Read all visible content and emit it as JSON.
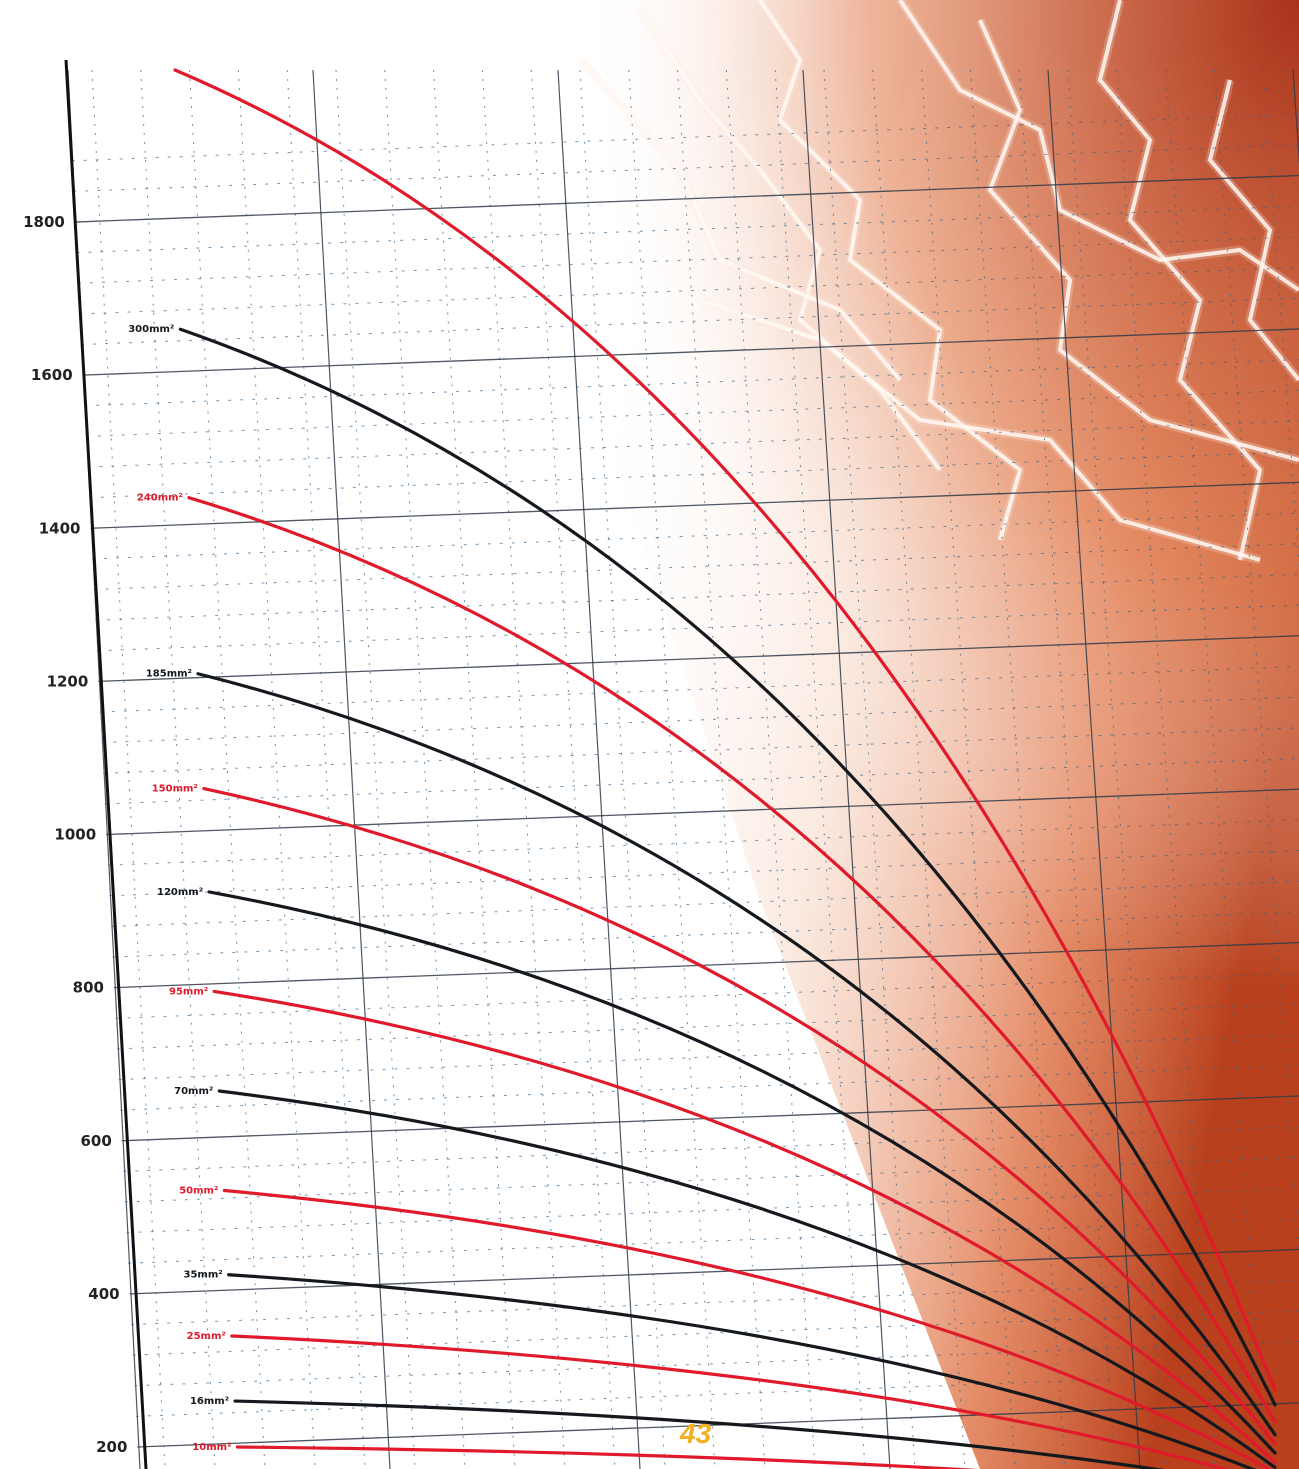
{
  "page": {
    "number": "43"
  },
  "colors": {
    "red_series": "#e0192b",
    "black_series": "#15181d",
    "grid_major": "#2f3a48",
    "grid_minor": "#2f5f86",
    "background_glow": "#c9502a"
  },
  "chart_data": {
    "type": "line",
    "title": "",
    "xlabel": "",
    "ylabel": "",
    "yticks": [
      "200",
      "400",
      "600",
      "800",
      "1000",
      "1200",
      "1400",
      "1600",
      "1800"
    ],
    "ylim": [
      150,
      1950
    ],
    "x": [
      0,
      1
    ],
    "grid": true,
    "legend": "labels at the left end of each curve",
    "series": [
      {
        "name": "300mm²",
        "color": "black",
        "start": 1660,
        "end": 255
      },
      {
        "name": "240mm²",
        "color": "red",
        "start": 1440,
        "end": 235
      },
      {
        "name": "185mm²",
        "color": "black",
        "start": 1210,
        "end": 220
      },
      {
        "name": "150mm²",
        "color": "red",
        "start": 1060,
        "end": 210
      },
      {
        "name": "120mm²",
        "color": "black",
        "start": 925,
        "end": 200
      },
      {
        "name": "95mm²",
        "color": "red",
        "start": 795,
        "end": 190
      },
      {
        "name": "70mm²",
        "color": "black",
        "start": 665,
        "end": 185
      },
      {
        "name": "50mm²",
        "color": "red",
        "start": 535,
        "end": 180
      },
      {
        "name": "35mm²",
        "color": "black",
        "start": 425,
        "end": 175
      },
      {
        "name": "25mm²",
        "color": "red",
        "start": 345,
        "end": 170
      },
      {
        "name": "16mm²",
        "color": "black",
        "start": 260,
        "end": 165
      },
      {
        "name": "10mm²",
        "color": "red",
        "start": 200,
        "end": 160
      }
    ],
    "extra_curve": {
      "color": "red",
      "start": 1920,
      "end": 255
    }
  }
}
